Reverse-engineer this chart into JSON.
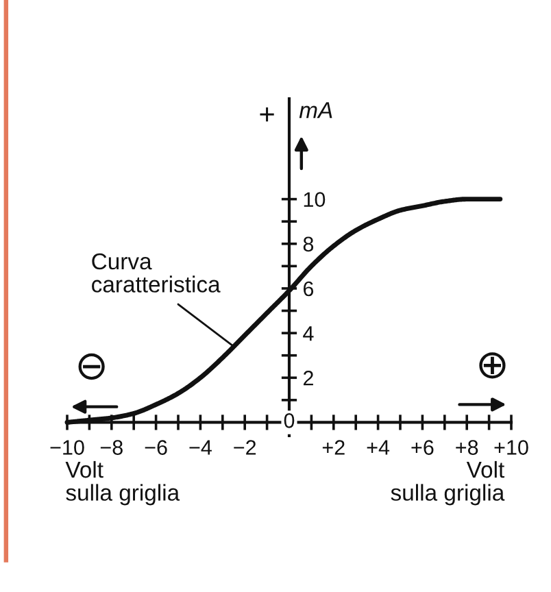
{
  "chart_data": {
    "type": "line",
    "xlabel": "Volt\nsulla griglia",
    "ylabel": "mA",
    "annotations": [
      {
        "text": "Curva\ncaratteristica",
        "x": -2.5,
        "y": 3.4
      },
      "Volt\nsulla griglia",
      "+",
      "⊖",
      "⊕",
      "0"
    ],
    "x": [
      -10,
      -9,
      -8,
      -7,
      -6,
      -5,
      -4,
      -3,
      -2,
      -1,
      0,
      1,
      2,
      3,
      4,
      5,
      6,
      7,
      8,
      9,
      9.5
    ],
    "series": [
      {
        "color": "#111111",
        "values": [
          0,
          0.1,
          0.2,
          0.4,
          0.8,
          1.3,
          2.0,
          2.9,
          3.9,
          4.9,
          5.9,
          7.0,
          7.9,
          8.6,
          9.1,
          9.5,
          9.7,
          9.9,
          10,
          10,
          10
        ]
      }
    ],
    "xlim": [
      -10,
      10
    ],
    "ylim": [
      -0.6,
      14.5
    ],
    "xticks": [
      {
        "value": -10,
        "label": "−10"
      },
      {
        "value": -9,
        "label": null
      },
      {
        "value": -8,
        "label": "−8"
      },
      {
        "value": -7,
        "label": null
      },
      {
        "value": -6,
        "label": "−6"
      },
      {
        "value": -5,
        "label": null
      },
      {
        "value": -4,
        "label": "−4"
      },
      {
        "value": -3,
        "label": null
      },
      {
        "value": -2,
        "label": "−2"
      },
      {
        "value": -1,
        "label": null
      },
      {
        "value": 1,
        "label": null
      },
      {
        "value": 2,
        "label": "+2"
      },
      {
        "value": 3,
        "label": null
      },
      {
        "value": 4,
        "label": "+4"
      },
      {
        "value": 5,
        "label": null
      },
      {
        "value": 6,
        "label": "+6"
      },
      {
        "value": 7,
        "label": null
      },
      {
        "value": 8,
        "label": "+8"
      },
      {
        "value": 9,
        "label": null
      },
      {
        "value": 10,
        "label": "+10"
      }
    ],
    "yticks": [
      {
        "value": 1,
        "label": null
      },
      2,
      {
        "value": 3,
        "label": null
      },
      4,
      {
        "value": 5,
        "label": null
      },
      6,
      {
        "value": 7,
        "label": null
      },
      8,
      {
        "value": 9,
        "label": null
      },
      10
    ],
    "marker": "none",
    "line_style": "solid"
  }
}
